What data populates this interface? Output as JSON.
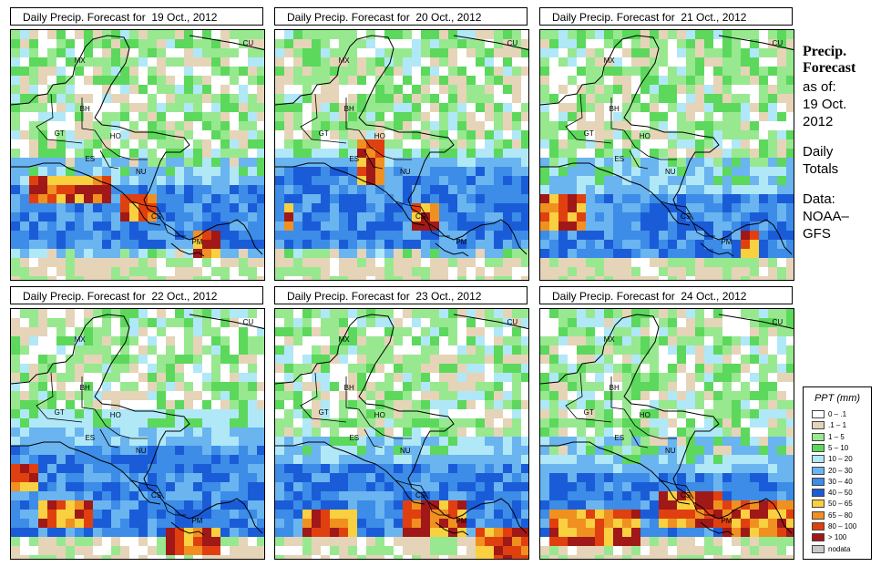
{
  "panels": [
    {
      "title": "Daily Precip. Forecast for  19 Oct., 2012",
      "seed": 11,
      "bands": [
        [
          0.62,
          0.86,
          3,
          6
        ],
        [
          0.58,
          0.82,
          2,
          5
        ],
        [
          0.53,
          0.74,
          1,
          3
        ]
      ],
      "hot": [
        [
          0.08,
          0.62,
          0.3,
          0.06
        ],
        [
          0.42,
          0.7,
          0.16,
          0.05
        ],
        [
          0.7,
          0.83,
          0.12,
          0.05
        ]
      ]
    },
    {
      "title": "Daily Precip. Forecast for  20 Oct., 2012",
      "seed": 23,
      "bands": [
        [
          0.55,
          0.84,
          3,
          6
        ],
        [
          0.5,
          0.78,
          2,
          5
        ],
        [
          0.45,
          0.7,
          1,
          3
        ]
      ],
      "hot": [
        [
          0.33,
          0.52,
          0.1,
          0.08
        ],
        [
          0.55,
          0.72,
          0.1,
          0.05
        ],
        [
          0.02,
          0.74,
          0.05,
          0.05
        ]
      ]
    },
    {
      "title": "Daily Precip. Forecast for  21 Oct., 2012",
      "seed": 37,
      "bands": [
        [
          0.66,
          0.92,
          3,
          6
        ],
        [
          0.6,
          0.86,
          2,
          5
        ],
        [
          0.55,
          0.8,
          1,
          3
        ]
      ],
      "hot": [
        [
          0.0,
          0.7,
          0.18,
          0.07
        ],
        [
          0.78,
          0.84,
          0.08,
          0.05
        ]
      ]
    },
    {
      "title": "Daily Precip. Forecast for  22 Oct., 2012",
      "seed": 49,
      "bands": [
        [
          0.55,
          0.98,
          3,
          6
        ],
        [
          0.45,
          0.95,
          2,
          5
        ],
        [
          0.38,
          0.85,
          1,
          3
        ]
      ],
      "hot": [
        [
          0.0,
          0.66,
          0.12,
          0.06
        ],
        [
          0.12,
          0.8,
          0.2,
          0.05
        ],
        [
          0.62,
          0.9,
          0.2,
          0.06
        ]
      ]
    },
    {
      "title": "Daily Precip. Forecast for  23 Oct., 2012",
      "seed": 61,
      "bands": [
        [
          0.62,
          0.96,
          3,
          6
        ],
        [
          0.58,
          0.92,
          2,
          5
        ],
        [
          0.5,
          0.86,
          1,
          3
        ]
      ],
      "hot": [
        [
          0.12,
          0.85,
          0.2,
          0.06
        ],
        [
          0.5,
          0.82,
          0.25,
          0.06
        ],
        [
          0.8,
          0.92,
          0.2,
          0.07
        ]
      ]
    },
    {
      "title": "Daily Precip. Forecast for  24 Oct., 2012",
      "seed": 73,
      "bands": [
        [
          0.66,
          0.88,
          3,
          6
        ],
        [
          0.62,
          0.84,
          2,
          5
        ],
        [
          0.58,
          0.8,
          1,
          3
        ]
      ],
      "hot": [
        [
          0.02,
          0.86,
          0.38,
          0.06
        ],
        [
          0.45,
          0.79,
          0.25,
          0.06
        ],
        [
          0.72,
          0.82,
          0.28,
          0.06
        ]
      ]
    }
  ],
  "countries": [
    "MX",
    "CU",
    "BH",
    "GT",
    "HO",
    "ES",
    "NU",
    "CS",
    "PM"
  ],
  "side": {
    "line1": "Precip.",
    "line2": "Forecast",
    "asof1": "as of:",
    "asof2": "19 Oct.",
    "asof3": "2012",
    "daily1": "Daily",
    "daily2": "Totals",
    "data1": "Data:",
    "data2": "NOAA–",
    "data3": "GFS"
  },
  "legend": {
    "title": "PPT (mm)",
    "items": [
      {
        "label": "0 – .1",
        "color": "#ffffff"
      },
      {
        "label": ".1 – 1",
        "color": "#e6d4b8"
      },
      {
        "label": "1 – 5",
        "color": "#98e890"
      },
      {
        "label": "5 – 10",
        "color": "#5cd85c"
      },
      {
        "label": "10 – 20",
        "color": "#b0e8f8"
      },
      {
        "label": "20 – 30",
        "color": "#6ab4f0"
      },
      {
        "label": "30 – 40",
        "color": "#3c8ce8"
      },
      {
        "label": "40 – 50",
        "color": "#1a5cd8"
      },
      {
        "label": "50 – 65",
        "color": "#f8d040"
      },
      {
        "label": "65 – 80",
        "color": "#f09020"
      },
      {
        "label": "80 – 100",
        "color": "#e04010"
      },
      {
        "label": "> 100",
        "color": "#a01818"
      },
      {
        "label": "nodata",
        "color": "#c8c8c8"
      }
    ]
  }
}
